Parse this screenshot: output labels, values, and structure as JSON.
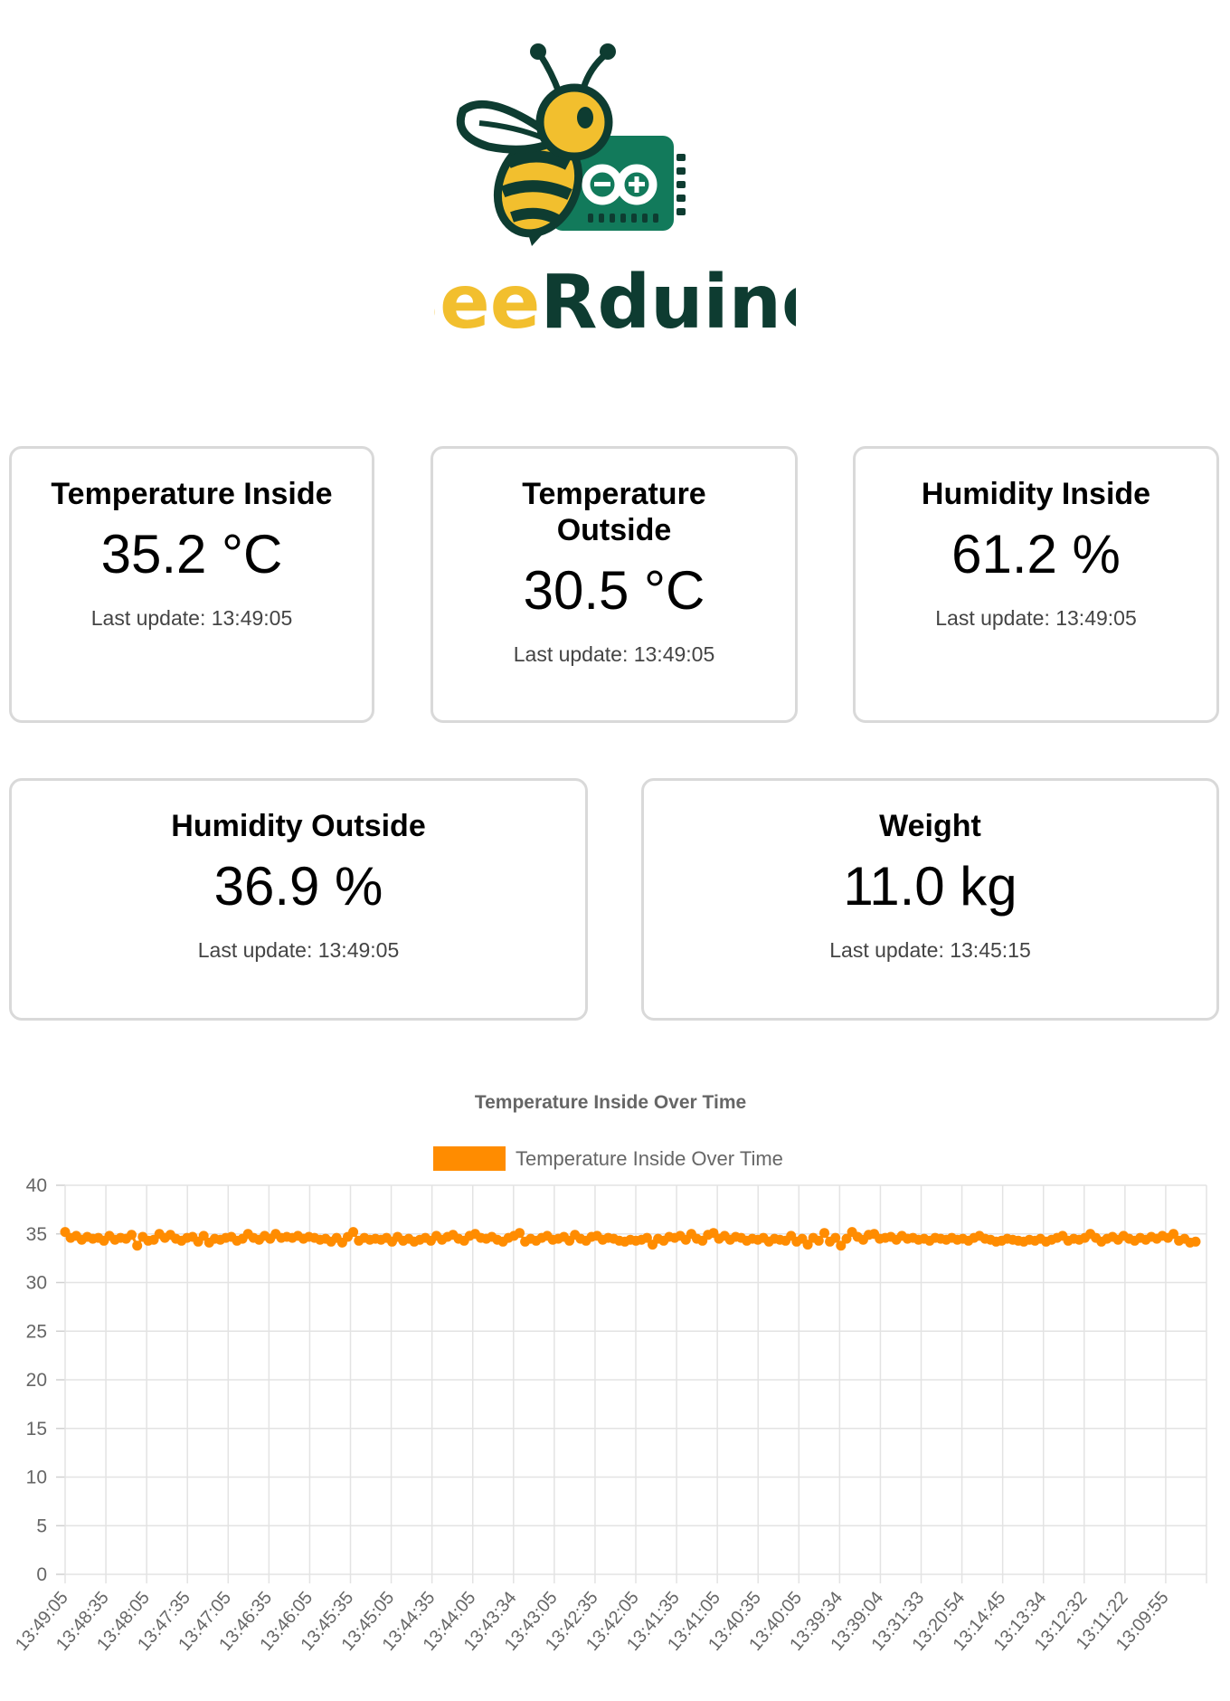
{
  "logo": {
    "name_part1": "Bee",
    "name_part2": "Rduino",
    "icon": "bee-arduino-icon",
    "colors": {
      "yellow": "#F2BF2E",
      "dark_green": "#0E3C31",
      "board_green": "#127A5B"
    }
  },
  "cards": [
    {
      "title": "Temperature Inside",
      "value": "35.2 °C",
      "last_update": "Last update: 13:49:05"
    },
    {
      "title": "Temperature Outside",
      "value": "30.5 °C",
      "last_update": "Last update: 13:49:05"
    },
    {
      "title": "Humidity Inside",
      "value": "61.2 %",
      "last_update": "Last update: 13:49:05"
    },
    {
      "title": "Humidity Outside",
      "value": "36.9 %",
      "last_update": "Last update: 13:49:05"
    },
    {
      "title": "Weight",
      "value": "11.0 kg",
      "last_update": "Last update: 13:45:15"
    }
  ],
  "chart_data": {
    "type": "line",
    "title": "Temperature Inside Over Time",
    "legend": "top",
    "series": [
      {
        "name": "Temperature Inside Over Time",
        "color": "#FF8C00"
      }
    ],
    "ylim": [
      0,
      40
    ],
    "yticks": [
      0,
      5,
      10,
      15,
      20,
      25,
      30,
      35,
      40
    ],
    "grid": true,
    "x_tick_labels": [
      "13:49:05",
      "13:48:35",
      "13:48:05",
      "13:47:35",
      "13:47:05",
      "13:46:35",
      "13:46:05",
      "13:45:35",
      "13:45:05",
      "13:44:35",
      "13:44:05",
      "13:43:34",
      "13:43:05",
      "13:42:35",
      "13:42:05",
      "13:41:35",
      "13:41:05",
      "13:40:35",
      "13:40:05",
      "13:39:34",
      "13:39:04",
      "13:31:33",
      "13:20:54",
      "13:14:45",
      "13:13:34",
      "13:12:32",
      "13:11:22",
      "13:09:55"
    ],
    "values": [
      35.2,
      34.6,
      34.8,
      34.4,
      34.7,
      34.5,
      34.6,
      34.3,
      34.8,
      34.4,
      34.6,
      34.5,
      34.9,
      33.8,
      34.7,
      34.3,
      34.4,
      35.0,
      34.6,
      34.9,
      34.5,
      34.3,
      34.6,
      34.7,
      34.2,
      34.8,
      34.1,
      34.5,
      34.4,
      34.6,
      34.7,
      34.3,
      34.5,
      35.0,
      34.6,
      34.4,
      34.8,
      34.5,
      35.0,
      34.6,
      34.7,
      34.6,
      34.8,
      34.5,
      34.7,
      34.6,
      34.4,
      34.5,
      34.2,
      34.6,
      34.1,
      34.7,
      35.2,
      34.3,
      34.6,
      34.4,
      34.5,
      34.4,
      34.6,
      34.2,
      34.7,
      34.3,
      34.5,
      34.2,
      34.4,
      34.6,
      34.3,
      34.8,
      34.4,
      34.7,
      34.9,
      34.5,
      34.3,
      34.8,
      35.0,
      34.6,
      34.5,
      34.7,
      34.4,
      34.2,
      34.6,
      34.8,
      35.1,
      34.2,
      34.5,
      34.3,
      34.6,
      34.8,
      34.4,
      34.5,
      34.7,
      34.3,
      34.9,
      34.5,
      34.3,
      34.7,
      34.8,
      34.4,
      34.6,
      34.5,
      34.3,
      34.2,
      34.4,
      34.3,
      34.4,
      34.6,
      33.9,
      34.5,
      34.3,
      34.7,
      34.6,
      34.8,
      34.4,
      35.0,
      34.5,
      34.3,
      34.9,
      35.1,
      34.5,
      34.8,
      34.4,
      34.7,
      34.6,
      34.3,
      34.5,
      34.4,
      34.6,
      34.2,
      34.5,
      34.4,
      34.3,
      34.8,
      34.2,
      34.5,
      33.9,
      34.6,
      34.3,
      35.1,
      34.2,
      34.6,
      33.8,
      34.5,
      35.2,
      34.7,
      34.4,
      34.9,
      35.0,
      34.5,
      34.6,
      34.7,
      34.4,
      34.8,
      34.5,
      34.6,
      34.4,
      34.5,
      34.3,
      34.6,
      34.5,
      34.4,
      34.6,
      34.4,
      34.5,
      34.3,
      34.6,
      34.8,
      34.5,
      34.4,
      34.2,
      34.3,
      34.5,
      34.4,
      34.3,
      34.2,
      34.4,
      34.3,
      34.5,
      34.2,
      34.4,
      34.6,
      34.8,
      34.3,
      34.5,
      34.4,
      34.6,
      35.0,
      34.6,
      34.2,
      34.5,
      34.7,
      34.4,
      34.8,
      34.5,
      34.3,
      34.6,
      34.4,
      34.7,
      34.5,
      34.8,
      34.6,
      35.0,
      34.3,
      34.5,
      34.1,
      34.2
    ]
  }
}
